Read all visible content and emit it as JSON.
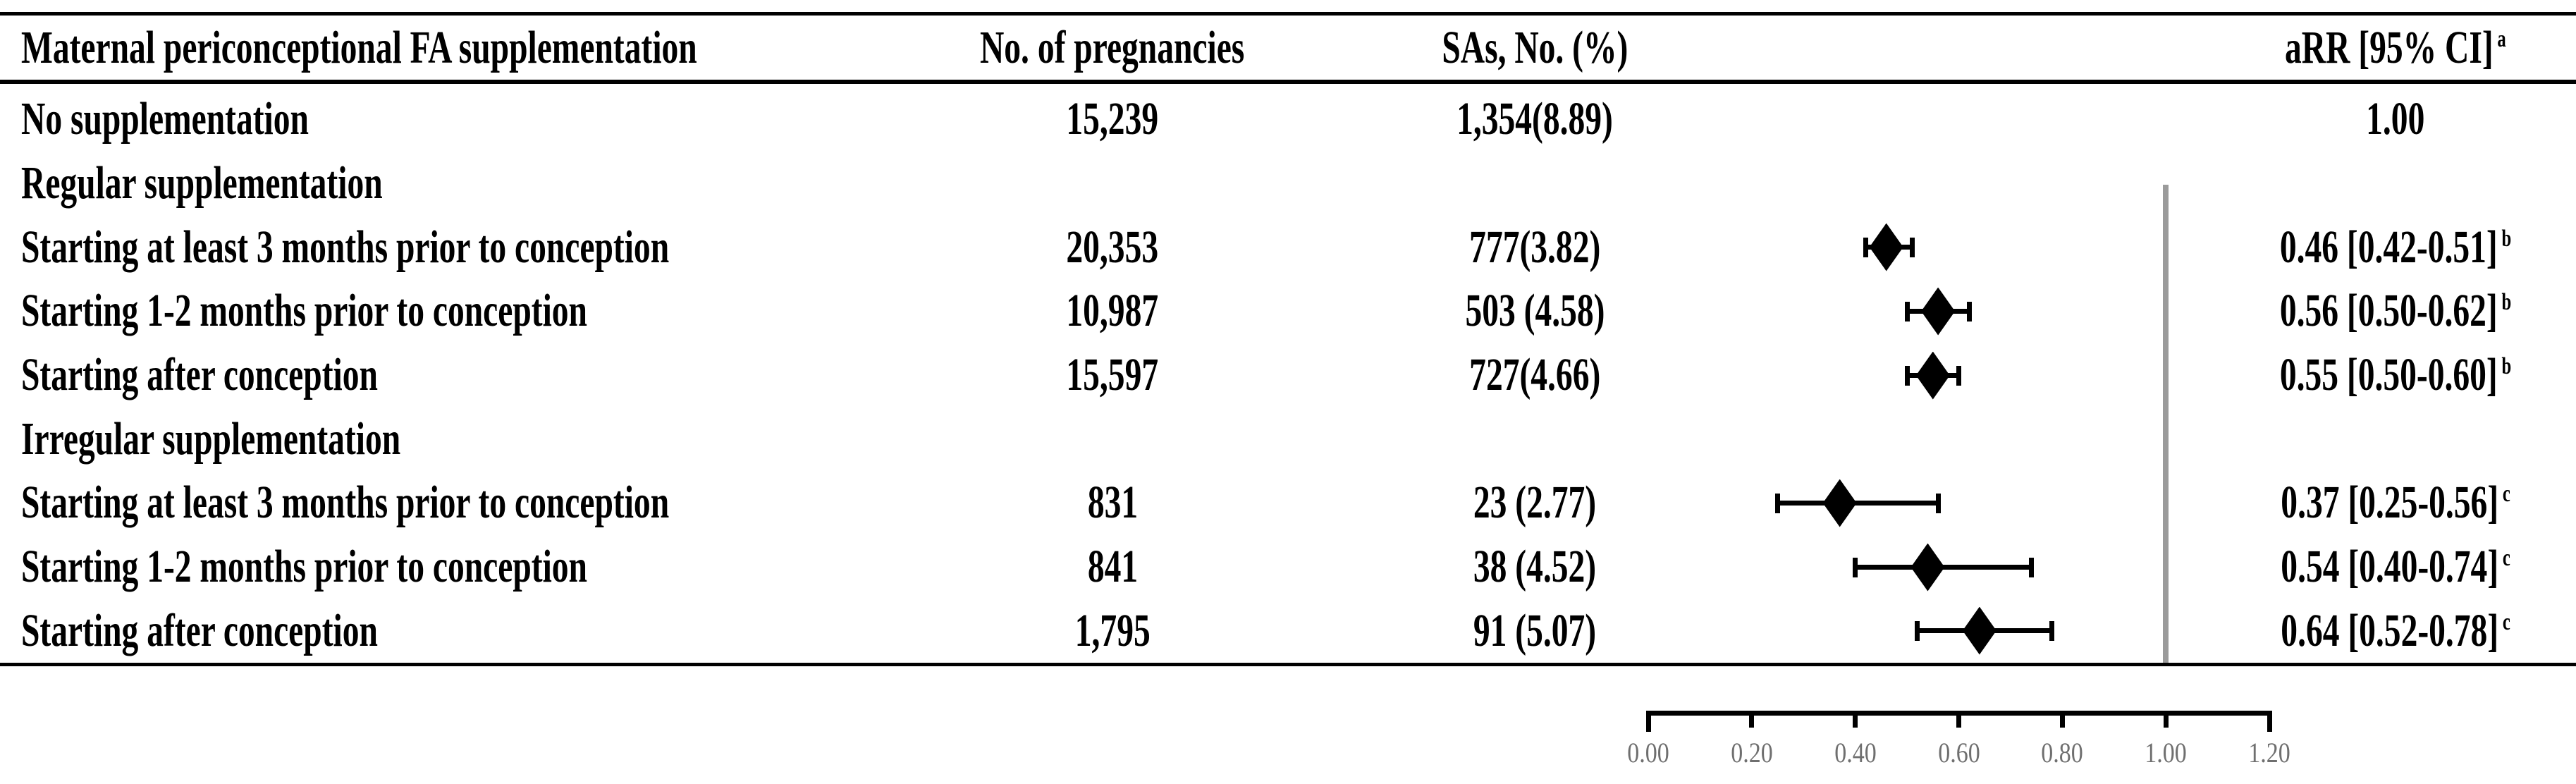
{
  "table": {
    "columns": [
      "Maternal periconceptional FA supplementation",
      "No. of pregnancies",
      "SAs, No. (%)",
      "aRR [95% CI]"
    ],
    "header_sup": "a",
    "rows": [
      {
        "label": "No supplementation",
        "group": false,
        "pregnancies": "15,239",
        "sas": "1,354(8.89)",
        "arr": "1.00",
        "sup": ""
      },
      {
        "label": "Regular supplementation",
        "group": true,
        "pregnancies": "",
        "sas": "",
        "arr": "",
        "sup": ""
      },
      {
        "label": "Starting at least 3 months prior to conception",
        "group": false,
        "pregnancies": "20,353",
        "sas": "777(3.82)",
        "arr": "0.46 [0.42-0.51]",
        "sup": "b"
      },
      {
        "label": "Starting 1-2 months prior to conception",
        "group": false,
        "pregnancies": "10,987",
        "sas": "503 (4.58)",
        "arr": "0.56 [0.50-0.62]",
        "sup": "b"
      },
      {
        "label": "Starting after conception",
        "group": false,
        "pregnancies": "15,597",
        "sas": "727(4.66)",
        "arr": "0.55 [0.50-0.60]",
        "sup": "b"
      },
      {
        "label": "Irregular supplementation",
        "group": true,
        "pregnancies": "",
        "sas": "",
        "arr": "",
        "sup": ""
      },
      {
        "label": "Starting at least 3 months prior to conception",
        "group": false,
        "pregnancies": "831",
        "sas": "23 (2.77)",
        "arr": "0.37 [0.25-0.56]",
        "sup": "c"
      },
      {
        "label": "Starting 1-2 months prior to conception",
        "group": false,
        "pregnancies": "841",
        "sas": "38 (4.52)",
        "arr": "0.54 [0.40-0.74]",
        "sup": "c"
      },
      {
        "label": "Starting after conception",
        "group": false,
        "pregnancies": "1,795",
        "sas": "91 (5.07)",
        "arr": "0.64 [0.52-0.78]",
        "sup": "c"
      }
    ]
  },
  "chart_data": {
    "type": "forest",
    "xlim": [
      0,
      1.2
    ],
    "x_ticks": [
      0,
      0.2,
      0.4,
      0.6,
      0.8,
      1.0,
      1.2
    ],
    "x_tick_labels": [
      "0.00",
      "0.20",
      "0.40",
      "0.60",
      "0.80",
      "1.00",
      "1.20"
    ],
    "reference_line": 1.0,
    "points": [
      {
        "row": 2,
        "label": "Regular, starting at least 3 months prior to conception",
        "est": 0.46,
        "lo": 0.42,
        "hi": 0.51
      },
      {
        "row": 3,
        "label": "Regular, starting 1-2 months prior to conception",
        "est": 0.56,
        "lo": 0.5,
        "hi": 0.62
      },
      {
        "row": 4,
        "label": "Regular, starting after conception",
        "est": 0.55,
        "lo": 0.5,
        "hi": 0.6
      },
      {
        "row": 6,
        "label": "Irregular, starting at least 3 months prior to conception",
        "est": 0.37,
        "lo": 0.25,
        "hi": 0.56
      },
      {
        "row": 7,
        "label": "Irregular, starting 1-2 months prior to conception",
        "est": 0.54,
        "lo": 0.4,
        "hi": 0.74
      },
      {
        "row": 8,
        "label": "Irregular, starting after conception",
        "est": 0.64,
        "lo": 0.52,
        "hi": 0.78
      }
    ],
    "colors": {
      "marker": "#000000",
      "reference_line": "#9b9b9b",
      "tick_label": "#6f6f6f"
    }
  }
}
